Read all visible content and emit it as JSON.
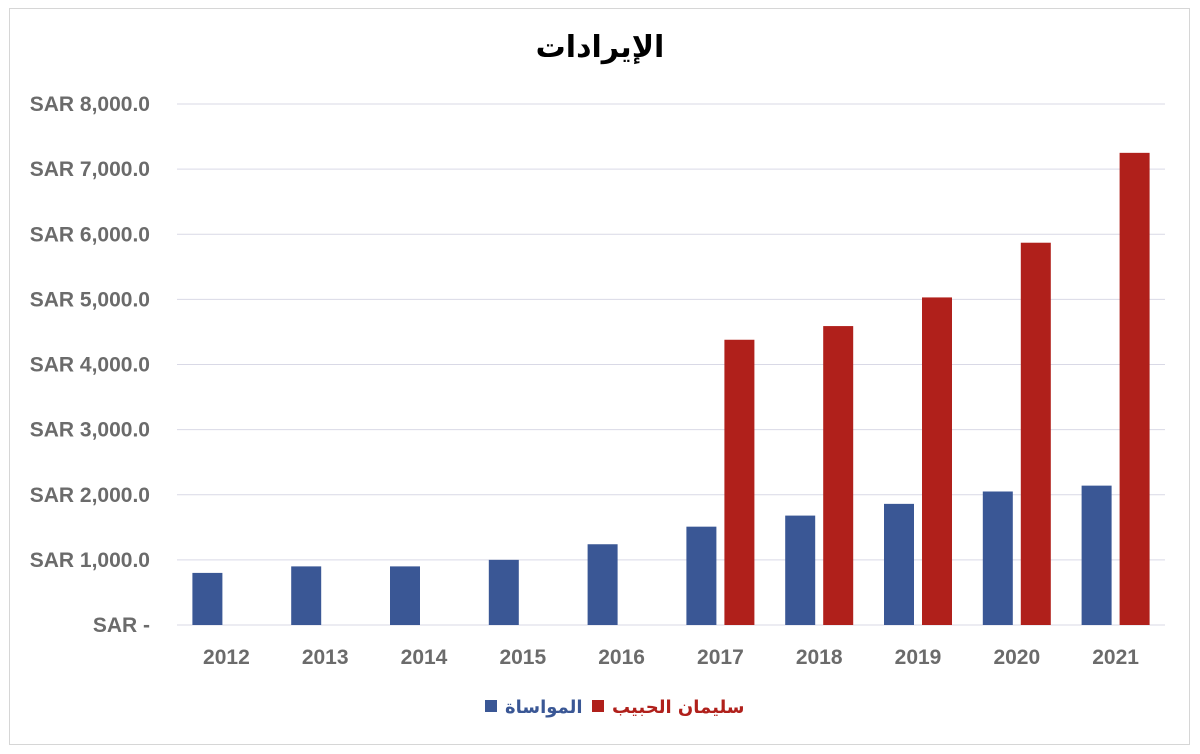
{
  "chart_data": {
    "type": "bar",
    "title": "الإيرادات",
    "categories": [
      "2012",
      "2013",
      "2014",
      "2015",
      "2016",
      "2017",
      "2018",
      "2019",
      "2020",
      "2021"
    ],
    "series": [
      {
        "name": "المواساة",
        "color": "#3a5795",
        "values": [
          800,
          900,
          900,
          1000,
          1240,
          1510,
          1680,
          1860,
          2050,
          2140
        ]
      },
      {
        "name": "سليمان الحبيب",
        "color": "#b0201b",
        "values": [
          null,
          null,
          null,
          null,
          null,
          4380,
          4590,
          5030,
          5870,
          7250
        ]
      }
    ],
    "ylim": [
      0,
      8000
    ],
    "yticks": [
      0,
      1000,
      2000,
      3000,
      4000,
      5000,
      6000,
      7000,
      8000
    ],
    "ytick_labels": [
      "SAR -",
      "SAR 1,000.0",
      "SAR 2,000.0",
      "SAR 3,000.0",
      "SAR 4,000.0",
      "SAR 5,000.0",
      "SAR 6,000.0",
      "SAR 7,000.0",
      "SAR 8,000.0"
    ],
    "grid": true,
    "legend": "bottom",
    "colors": {
      "gridline": "#d9d9e6",
      "axis_text": "#6b6b6b"
    }
  }
}
